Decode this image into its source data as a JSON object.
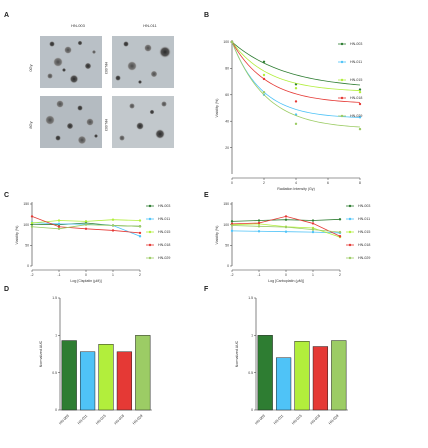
{
  "panels": {
    "a": "A",
    "b": "B",
    "c": "C",
    "d": "D",
    "e": "E",
    "f": "F"
  },
  "micrographs": {
    "columns": [
      "HN-003",
      "HN-011"
    ],
    "rows": [
      "0Gy",
      "8Gy"
    ],
    "side_labels": [
      "HN-003",
      "HN-003"
    ]
  },
  "colors": {
    "HN-003": "#2e7d32",
    "HN-011": "#4fc3f7",
    "HN-015": "#b2ee3c",
    "HN-018": "#e53935",
    "HN-029": "#9ccc65"
  },
  "chart_data": [
    {
      "id": "B",
      "type": "line",
      "xlabel": "Radiation Intensity (Gy)",
      "ylabel": "Viability (%)",
      "xlim": [
        0,
        8
      ],
      "ylim": [
        0,
        100
      ],
      "xticks": [
        0,
        2,
        4,
        6,
        8
      ],
      "yticks": [
        20,
        40,
        60,
        80,
        100
      ],
      "legend": "right",
      "series": [
        {
          "name": "HN-003",
          "x": [
            0,
            2,
            4,
            8
          ],
          "y": [
            100,
            85,
            68,
            64
          ],
          "fit": [
            100,
            84,
            68,
            64,
            64
          ]
        },
        {
          "name": "HN-011",
          "x": [
            0,
            2,
            4,
            8
          ],
          "y": [
            100,
            60,
            45,
            43
          ],
          "fit": [
            100,
            62,
            44,
            42,
            42
          ]
        },
        {
          "name": "HN-015",
          "x": [
            0,
            2,
            4,
            8
          ],
          "y": [
            100,
            75,
            65,
            62
          ],
          "fit": [
            100,
            78,
            64,
            62,
            62
          ]
        },
        {
          "name": "HN-018",
          "x": [
            0,
            2,
            4,
            8
          ],
          "y": [
            100,
            72,
            55,
            53
          ],
          "fit": [
            100,
            72,
            56,
            53,
            53
          ]
        },
        {
          "name": "HN-029",
          "x": [
            0,
            2,
            4,
            8
          ],
          "y": [
            100,
            62,
            38,
            34
          ],
          "fit": [
            100,
            60,
            38,
            34,
            34
          ]
        }
      ]
    },
    {
      "id": "C",
      "type": "line",
      "xlabel": "Log [Cisplatin (μM)]",
      "ylabel": "Viability (%)",
      "xlim": [
        -2,
        2
      ],
      "ylim": [
        0,
        150
      ],
      "xticks": [
        -2,
        -1,
        0,
        1,
        2
      ],
      "yticks": [
        0,
        50,
        100,
        150
      ],
      "legend": "right",
      "series": [
        {
          "name": "HN-003",
          "x": [
            -2,
            -1,
            0,
            1,
            2
          ],
          "y": [
            101,
            100,
            104,
            98,
            96
          ]
        },
        {
          "name": "HN-011",
          "x": [
            -2,
            -1,
            0,
            1,
            2
          ],
          "y": [
            105,
            102,
            101,
            98,
            72
          ]
        },
        {
          "name": "HN-015",
          "x": [
            -2,
            -1,
            0,
            1,
            2
          ],
          "y": [
            104,
            110,
            108,
            112,
            110
          ]
        },
        {
          "name": "HN-018",
          "x": [
            -2,
            -1,
            0,
            1,
            2
          ],
          "y": [
            120,
            95,
            90,
            86,
            80
          ]
        },
        {
          "name": "HN-029",
          "x": [
            -2,
            -1,
            0,
            1,
            2
          ],
          "y": [
            95,
            90,
            100,
            98,
            96
          ]
        }
      ]
    },
    {
      "id": "D",
      "type": "bar",
      "ylabel": "Normalized AUC",
      "ylim": [
        0,
        1.5
      ],
      "yticks": [
        0,
        0.5,
        1.0,
        1.5
      ],
      "categories": [
        "HN-003",
        "HN-011",
        "HN-015",
        "HN-018",
        "HN-029"
      ],
      "values": [
        0.93,
        0.78,
        0.88,
        0.78,
        1.0
      ]
    },
    {
      "id": "E",
      "type": "line",
      "xlabel": "Log [Carboplatin (μM)]",
      "ylabel": "Viability (%)",
      "xlim": [
        -2,
        2
      ],
      "ylim": [
        0,
        150
      ],
      "xticks": [
        -2,
        -1,
        0,
        1,
        2
      ],
      "yticks": [
        0,
        50,
        100,
        150
      ],
      "legend": "right",
      "series": [
        {
          "name": "HN-003",
          "x": [
            -2,
            -1,
            0,
            1,
            2
          ],
          "y": [
            108,
            110,
            112,
            110,
            113
          ]
        },
        {
          "name": "HN-011",
          "x": [
            -2,
            -1,
            0,
            1,
            2
          ],
          "y": [
            85,
            84,
            83,
            82,
            80
          ]
        },
        {
          "name": "HN-015",
          "x": [
            -2,
            -1,
            0,
            1,
            2
          ],
          "y": [
            100,
            102,
            95,
            92,
            70
          ]
        },
        {
          "name": "HN-018",
          "x": [
            -2,
            -1,
            0,
            1,
            2
          ],
          "y": [
            102,
            104,
            120,
            103,
            72
          ]
        },
        {
          "name": "HN-029",
          "x": [
            -2,
            -1,
            0,
            1,
            2
          ],
          "y": [
            98,
            96,
            94,
            88,
            82
          ]
        }
      ]
    },
    {
      "id": "F",
      "type": "bar",
      "ylabel": "Normalized AUC",
      "ylim": [
        0,
        1.5
      ],
      "yticks": [
        0,
        0.5,
        1.0,
        1.5
      ],
      "categories": [
        "HN-003",
        "HN-011",
        "HN-015",
        "HN-018",
        "HN-029"
      ],
      "values": [
        1.0,
        0.7,
        0.92,
        0.85,
        0.93
      ]
    }
  ]
}
